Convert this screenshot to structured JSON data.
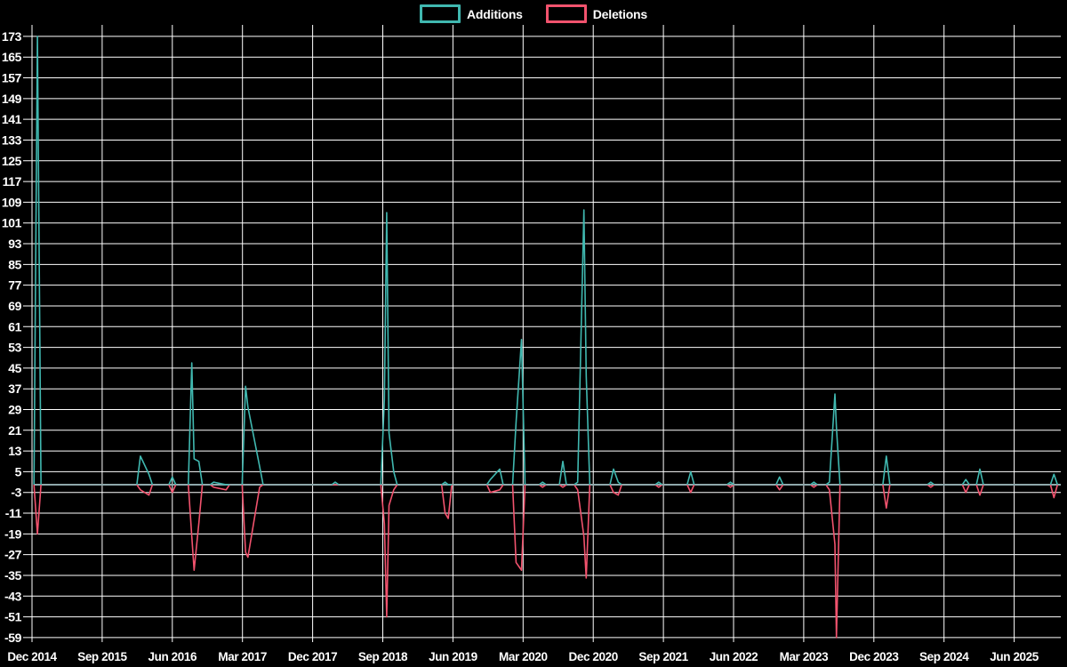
{
  "legend": {
    "items": [
      {
        "label": "Additions",
        "color": "#40b8b0"
      },
      {
        "label": "Deletions",
        "color": "#f2536e"
      }
    ]
  },
  "chart_data": {
    "type": "line",
    "title": "",
    "description": "Weekly code additions (teal) and deletions (pink) over time, spiky line chart on black background with white grid",
    "background": "#000000",
    "grid_color": "#ffffff",
    "baseline_color": "#8fa8ab",
    "legend_position": "top-center",
    "series": [
      {
        "name": "Additions",
        "color": "#40b8b0"
      },
      {
        "name": "Deletions",
        "color": "#f2536e"
      }
    ],
    "y_axis": {
      "min": -59,
      "max": 173,
      "tick_step": 8,
      "tick_labels": [
        "173",
        "165",
        "157",
        "149",
        "141",
        "133",
        "125",
        "117",
        "109",
        "101",
        "93",
        "85",
        "77",
        "69",
        "61",
        "53",
        "45",
        "37",
        "29",
        "21",
        "13",
        "5",
        "-3",
        "-11",
        "-19",
        "-27",
        "-35",
        "-43",
        "-51",
        "-59"
      ]
    },
    "x_axis": {
      "tick_labels": [
        "Dec 2014",
        "Sep 2015",
        "Jun 2016",
        "Mar 2017",
        "Dec 2017",
        "Sep 2018",
        "Jun 2019",
        "Mar 2020",
        "Dec 2020",
        "Sep 2021",
        "Jun 2022",
        "Mar 2023",
        "Dec 2023",
        "Sep 2024",
        "Jun 2025"
      ],
      "months_between_ticks": 9,
      "total_months_shown": 132
    },
    "points": {
      "unit_x": "months since Dec 2014",
      "columns": [
        "month",
        "additions",
        "deletions"
      ],
      "data": [
        [
          0.7,
          173,
          -19
        ],
        [
          13.9,
          11,
          -2
        ],
        [
          15.0,
          4,
          -4
        ],
        [
          18.0,
          3,
          -3
        ],
        [
          20.5,
          47,
          -20
        ],
        [
          20.8,
          10,
          -33
        ],
        [
          21.4,
          9,
          -15
        ],
        [
          23.3,
          1,
          -1
        ],
        [
          24.9,
          0,
          -2
        ],
        [
          27.4,
          38,
          -26
        ],
        [
          27.7,
          30,
          -28
        ],
        [
          29.2,
          7,
          -1
        ],
        [
          38.9,
          1,
          0
        ],
        [
          45.2,
          33,
          -15
        ],
        [
          45.5,
          105,
          -51
        ],
        [
          45.8,
          20,
          -8
        ],
        [
          46.4,
          5,
          -2
        ],
        [
          53.0,
          1,
          -11
        ],
        [
          53.4,
          0,
          -13
        ],
        [
          58.8,
          2,
          -3
        ],
        [
          60.0,
          6,
          -2
        ],
        [
          62.1,
          24,
          -30
        ],
        [
          62.8,
          56,
          -33
        ],
        [
          65.5,
          1,
          -1
        ],
        [
          68.1,
          9,
          -1
        ],
        [
          70.0,
          1,
          -2
        ],
        [
          70.8,
          106,
          -20
        ],
        [
          71.1,
          42,
          -36
        ],
        [
          74.6,
          6,
          -3
        ],
        [
          75.2,
          1,
          -4
        ],
        [
          80.4,
          1,
          -1
        ],
        [
          84.5,
          5,
          -3
        ],
        [
          89.6,
          1,
          -1
        ],
        [
          95.9,
          3,
          -2
        ],
        [
          100.3,
          1,
          -1
        ],
        [
          102.3,
          1,
          -2
        ],
        [
          103.0,
          35,
          -23
        ],
        [
          103.2,
          22,
          -59
        ],
        [
          109.6,
          11,
          -9
        ],
        [
          115.3,
          1,
          -1
        ],
        [
          119.8,
          2,
          -3
        ],
        [
          121.6,
          6,
          -4
        ],
        [
          131.1,
          4,
          -5
        ]
      ]
    }
  }
}
